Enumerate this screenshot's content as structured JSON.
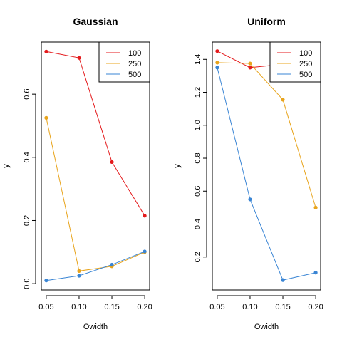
{
  "chart_data": [
    {
      "type": "line",
      "title": "Gaussian",
      "xlabel": "Owidth",
      "ylabel": "y",
      "x": [
        0.05,
        0.1,
        0.15,
        0.2
      ],
      "xticks": [
        "0.05",
        "0.10",
        "0.15",
        "0.20"
      ],
      "yticks": [
        "0.0",
        "0.2",
        "0.4",
        "0.6"
      ],
      "xlim": [
        0.0425,
        0.2075
      ],
      "ylim": [
        -0.02,
        0.765
      ],
      "legend": "top-right",
      "series": [
        {
          "name": "100",
          "color": "#E41A1C",
          "values": [
            0.735,
            0.715,
            0.385,
            0.215
          ]
        },
        {
          "name": "250",
          "color": "#E8A41C",
          "values": [
            0.525,
            0.04,
            0.055,
            0.1
          ]
        },
        {
          "name": "500",
          "color": "#3A85D4",
          "values": [
            0.01,
            0.025,
            0.06,
            0.102
          ]
        }
      ]
    },
    {
      "type": "line",
      "title": "Uniform",
      "xlabel": "Owidth",
      "ylabel": "y",
      "x": [
        0.05,
        0.1,
        0.15,
        0.2
      ],
      "xticks": [
        "0.05",
        "0.10",
        "0.15",
        "0.20"
      ],
      "yticks": [
        "0.2",
        "0.4",
        "0.6",
        "0.8",
        "1.0",
        "1.2",
        "1.4"
      ],
      "xlim": [
        0.0425,
        0.2075
      ],
      "ylim": [
        0.0,
        1.505
      ],
      "legend": "top-right",
      "series": [
        {
          "name": "100",
          "color": "#E41A1C",
          "values": [
            1.45,
            1.35,
            1.37,
            1.38
          ]
        },
        {
          "name": "250",
          "color": "#E8A41C",
          "values": [
            1.38,
            1.375,
            1.155,
            0.5
          ]
        },
        {
          "name": "500",
          "color": "#3A85D4",
          "values": [
            1.35,
            0.55,
            0.06,
            0.105
          ]
        }
      ]
    }
  ]
}
